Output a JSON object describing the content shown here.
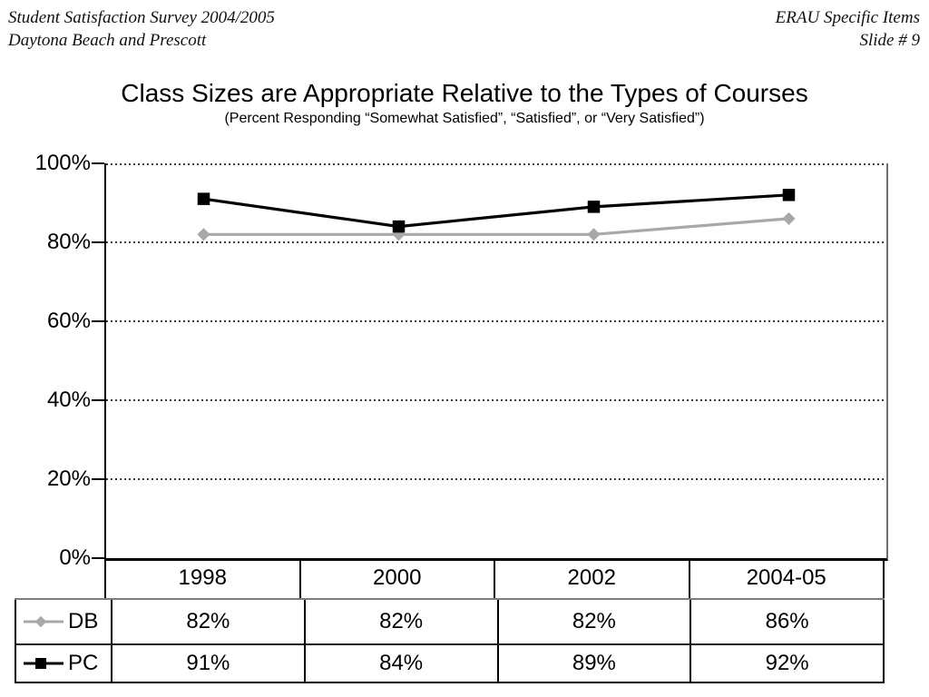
{
  "header": {
    "left_line1": "Student Satisfaction Survey 2004/2005",
    "left_line2": "Daytona Beach and Prescott",
    "right_line1": "ERAU Specific Items",
    "right_line2": "Slide # 9"
  },
  "chart_data": {
    "type": "line",
    "title": "Class Sizes are Appropriate Relative to the Types of Courses",
    "subtitle": "(Percent Responding “Somewhat Satisfied”, “Satisfied”, or “Very Satisfied”)",
    "categories": [
      "1998",
      "2000",
      "2002",
      "2004-05"
    ],
    "series": [
      {
        "name": "DB",
        "marker": "diamond",
        "color": "#a8a8a8",
        "values": [
          82,
          82,
          82,
          86
        ]
      },
      {
        "name": "PC",
        "marker": "square",
        "color": "#000000",
        "values": [
          91,
          84,
          89,
          92
        ]
      }
    ],
    "ylim": [
      0,
      100
    ],
    "y_ticks": [
      "100%",
      "80%",
      "60%",
      "40%",
      "20%",
      "0%"
    ],
    "grid": "dotted-horizontal",
    "legend_position": "table-rows-left"
  },
  "table": {
    "columns": [
      "1998",
      "2000",
      "2002",
      "2004-05"
    ],
    "rows": [
      {
        "label": "DB",
        "values": [
          "82%",
          "82%",
          "82%",
          "86%"
        ]
      },
      {
        "label": "PC",
        "values": [
          "91%",
          "84%",
          "89%",
          "92%"
        ]
      }
    ]
  }
}
